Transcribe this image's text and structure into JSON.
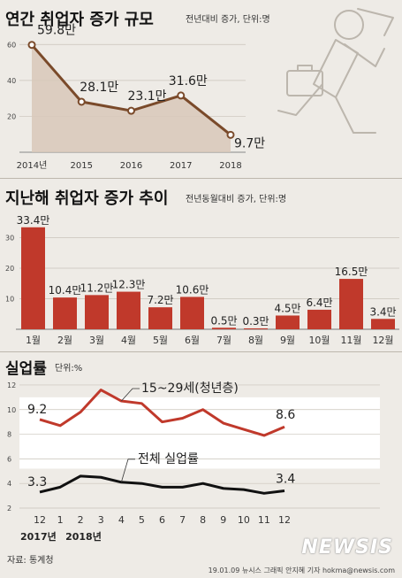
{
  "chart_data": [
    {
      "type": "area",
      "title": "연간 취업자 증가 규모",
      "subtitle": "전년대비 증가, 단위:명",
      "categories": [
        "2014년",
        "2015",
        "2016",
        "2017",
        "2018"
      ],
      "values": [
        59.8,
        28.1,
        23.1,
        31.6,
        9.7
      ],
      "labels": [
        "59.8만",
        "28.1만",
        "23.1만",
        "31.6만",
        "9.7만"
      ],
      "yticks": [
        "20",
        "40",
        "60"
      ],
      "ylim": [
        0,
        70
      ],
      "colors": {
        "line": "#7a4a2a",
        "fill": "#d8c8b8"
      }
    },
    {
      "type": "bar",
      "title": "지난해 취업자 증가 추이",
      "subtitle": "전년동월대비 증가, 단위:명",
      "categories": [
        "1월",
        "2월",
        "3월",
        "4월",
        "5월",
        "6월",
        "7월",
        "8월",
        "9월",
        "10월",
        "11월",
        "12월"
      ],
      "values": [
        33.4,
        10.4,
        11.2,
        12.3,
        7.2,
        10.6,
        0.5,
        0.3,
        4.5,
        6.4,
        16.5,
        3.4
      ],
      "labels": [
        "33.4만",
        "10.4만",
        "11.2만",
        "12.3만",
        "7.2만",
        "10.6만",
        "0.5만",
        "0.3만",
        "4.5만",
        "6.4만",
        "16.5만",
        "3.4만"
      ],
      "yticks": [
        "10",
        "20",
        "30"
      ],
      "ylim": [
        0,
        40
      ],
      "colors": {
        "bar": "#c0392b"
      }
    },
    {
      "type": "line",
      "title": "실업률",
      "subtitle": "단위:%",
      "categories": [
        "12",
        "1",
        "2",
        "3",
        "4",
        "5",
        "6",
        "7",
        "8",
        "9",
        "10",
        "11",
        "12"
      ],
      "year_labels": [
        "2017년",
        "2018년"
      ],
      "series": [
        {
          "name": "15~29세(청년층)",
          "values": [
            9.2,
            8.7,
            9.8,
            11.6,
            10.7,
            10.5,
            9.0,
            9.3,
            10.0,
            8.9,
            8.4,
            7.9,
            8.6
          ],
          "start_label": "9.2",
          "end_label": "8.6",
          "color": "#c0392b"
        },
        {
          "name": "전체 실업률",
          "values": [
            3.3,
            3.7,
            4.6,
            4.5,
            4.1,
            4.0,
            3.7,
            3.7,
            4.0,
            3.6,
            3.5,
            3.2,
            3.4
          ],
          "start_label": "3.3",
          "end_label": "3.4",
          "color": "#111111"
        }
      ],
      "yticks": [
        "2",
        "4",
        "6",
        "8",
        "10",
        "12"
      ],
      "ylim": [
        2,
        12.5
      ]
    }
  ],
  "footer": {
    "source": "자료: 통계청",
    "credit": "19.01.09 뉴시스 그래픽 안지혜 기자 hokma@newsis.com",
    "logo": "NEWSIS"
  }
}
